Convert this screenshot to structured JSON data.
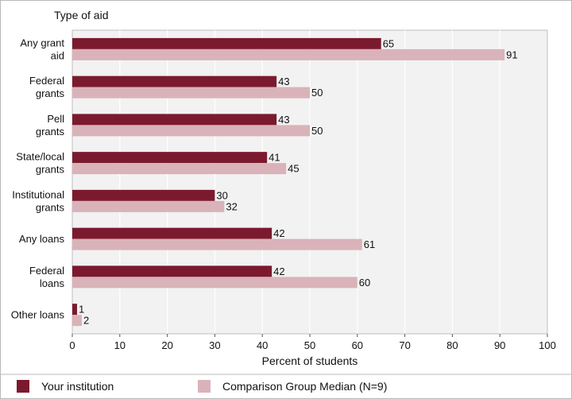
{
  "chart_data": {
    "type": "bar",
    "orientation": "horizontal",
    "title": "Type of aid",
    "xlabel": "Percent of students",
    "xlim": [
      0,
      100
    ],
    "xticks": [
      "0",
      "10",
      "20",
      "30",
      "40",
      "50",
      "60",
      "70",
      "80",
      "90",
      "100"
    ],
    "grid": true,
    "legend_position": "bottom",
    "categories": [
      [
        "Any grant",
        "aid"
      ],
      [
        "Federal",
        "grants"
      ],
      [
        "Pell",
        "grants"
      ],
      [
        "State/local",
        "grants"
      ],
      [
        "Institutional",
        "grants"
      ],
      [
        "Any loans"
      ],
      [
        "Federal",
        "loans"
      ],
      [
        "Other loans"
      ]
    ],
    "series": [
      {
        "name": "Your institution",
        "color": "#7b1a2e",
        "values": [
          65,
          43,
          43,
          41,
          30,
          42,
          42,
          1
        ]
      },
      {
        "name": "Comparison Group Median (N=9)",
        "color": "#d9b3b9",
        "values": [
          91,
          50,
          50,
          45,
          32,
          61,
          60,
          2
        ]
      }
    ]
  }
}
